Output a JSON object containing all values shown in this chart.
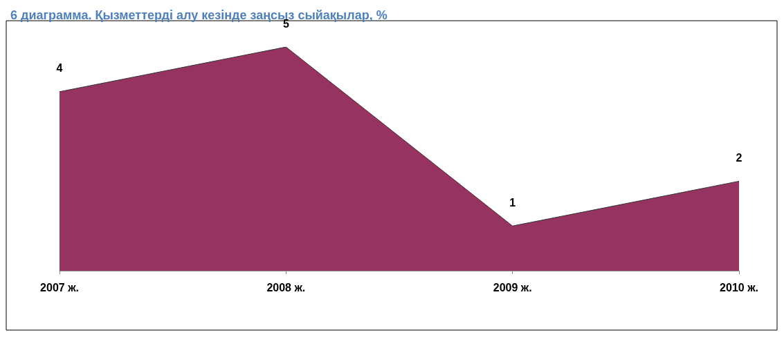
{
  "chart_data": {
    "type": "area",
    "title": "6 диаграмма. Қызметтерді алу кезінде заңсыз сыйақылар, %",
    "categories": [
      "2007 ж.",
      "2008 ж.",
      "2009 ж.",
      "2010 ж."
    ],
    "series": [
      {
        "color": "#963361",
        "values": [
          4,
          5,
          1,
          2
        ]
      }
    ],
    "data_labels": true,
    "grid": false,
    "marker": "none"
  }
}
